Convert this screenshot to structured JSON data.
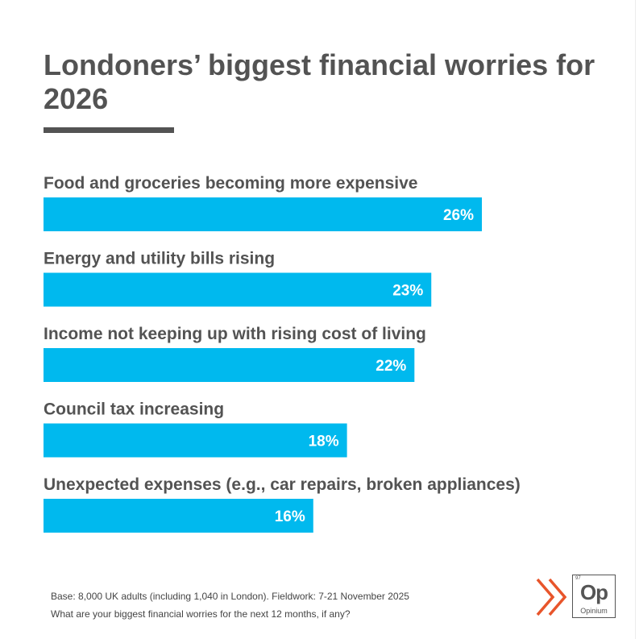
{
  "title": "Londoners’ biggest financial worries for 2026",
  "chart_data": {
    "type": "bar",
    "orientation": "horizontal",
    "categories": [
      "Food and groceries becoming more expensive",
      "Energy and utility bills rising",
      "Income not keeping up with rising cost of living",
      "Council tax increasing",
      "Unexpected expenses (e.g., car repairs, broken appliances)"
    ],
    "values": [
      26,
      23,
      22,
      18,
      16
    ],
    "value_labels": [
      "26%",
      "23%",
      "22%",
      "18%",
      "16%"
    ],
    "unit": "%",
    "bar_color": "#00B9EE"
  },
  "footnote": {
    "base": "Base: 8,000 UK adults (including 1,040 in London). Fieldwork: 7-21 November 2025",
    "question": "What are your biggest financial worries for the next 12 months, if any?"
  },
  "logo": {
    "small_text": "97",
    "mark": "Op",
    "name": "Opinium",
    "arrow_color": "#E8552B",
    "icon": "double-chevron-icon"
  }
}
